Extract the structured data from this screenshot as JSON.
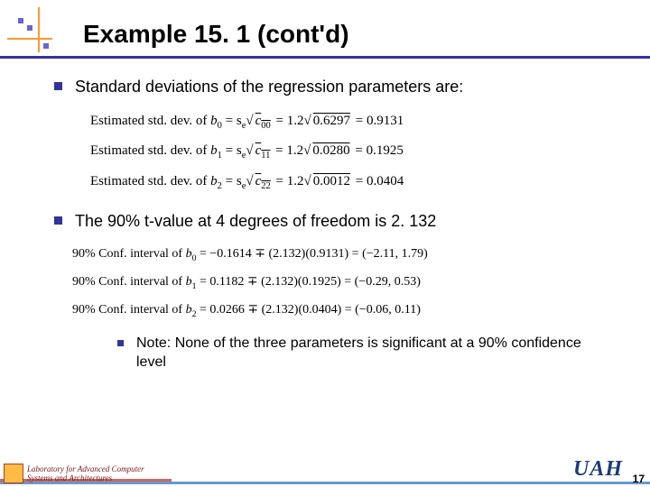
{
  "title": "Example 15. 1 (cont'd)",
  "bullets": {
    "b1": "Standard deviations of the regression parameters are:",
    "b2": "The 90% t-value at 4 degrees of freedom is 2. 132",
    "note": "Note: None of the three parameters is significant at a 90% confidence level"
  },
  "eq_sd": {
    "prefix": "Estimated std. dev. of ",
    "middle": " = s",
    "se_sub": "e",
    "se_value": "1.2",
    "rows": [
      {
        "param": "b",
        "psub": "0",
        "c": "c",
        "csub": "00",
        "cv": "0.6297",
        "res": "0.9131"
      },
      {
        "param": "b",
        "psub": "1",
        "c": "c",
        "csub": "11",
        "cv": "0.0280",
        "res": "0.1925"
      },
      {
        "param": "b",
        "psub": "2",
        "c": "c",
        "csub": "22",
        "cv": "0.0012",
        "res": "0.0404"
      }
    ]
  },
  "eq_ci": {
    "prefix": "90% Conf. interval of ",
    "t": "2.132",
    "rows": [
      {
        "param": "b",
        "psub": "0",
        "est": "−0.1614",
        "sd": "0.9131",
        "lo": "−2.11",
        "hi": "1.79"
      },
      {
        "param": "b",
        "psub": "1",
        "est": "0.1182",
        "sd": "0.1925",
        "lo": "−0.29",
        "hi": "0.53"
      },
      {
        "param": "b",
        "psub": "2",
        "est": "0.0266",
        "sd": "0.0404",
        "lo": "−0.06",
        "hi": "0.11"
      }
    ]
  },
  "footer": {
    "lab_line1": "Laboratory for Advanced Computer",
    "lab_line2": "Systems and Architectures",
    "uah": "UAH",
    "page": "17"
  },
  "colors": {
    "accent_orange": "#ff9933",
    "accent_blue": "#333399",
    "rule_blue": "#333399",
    "uah_blue": "#1b3b7a",
    "lab_red": "#7a1a1a"
  }
}
